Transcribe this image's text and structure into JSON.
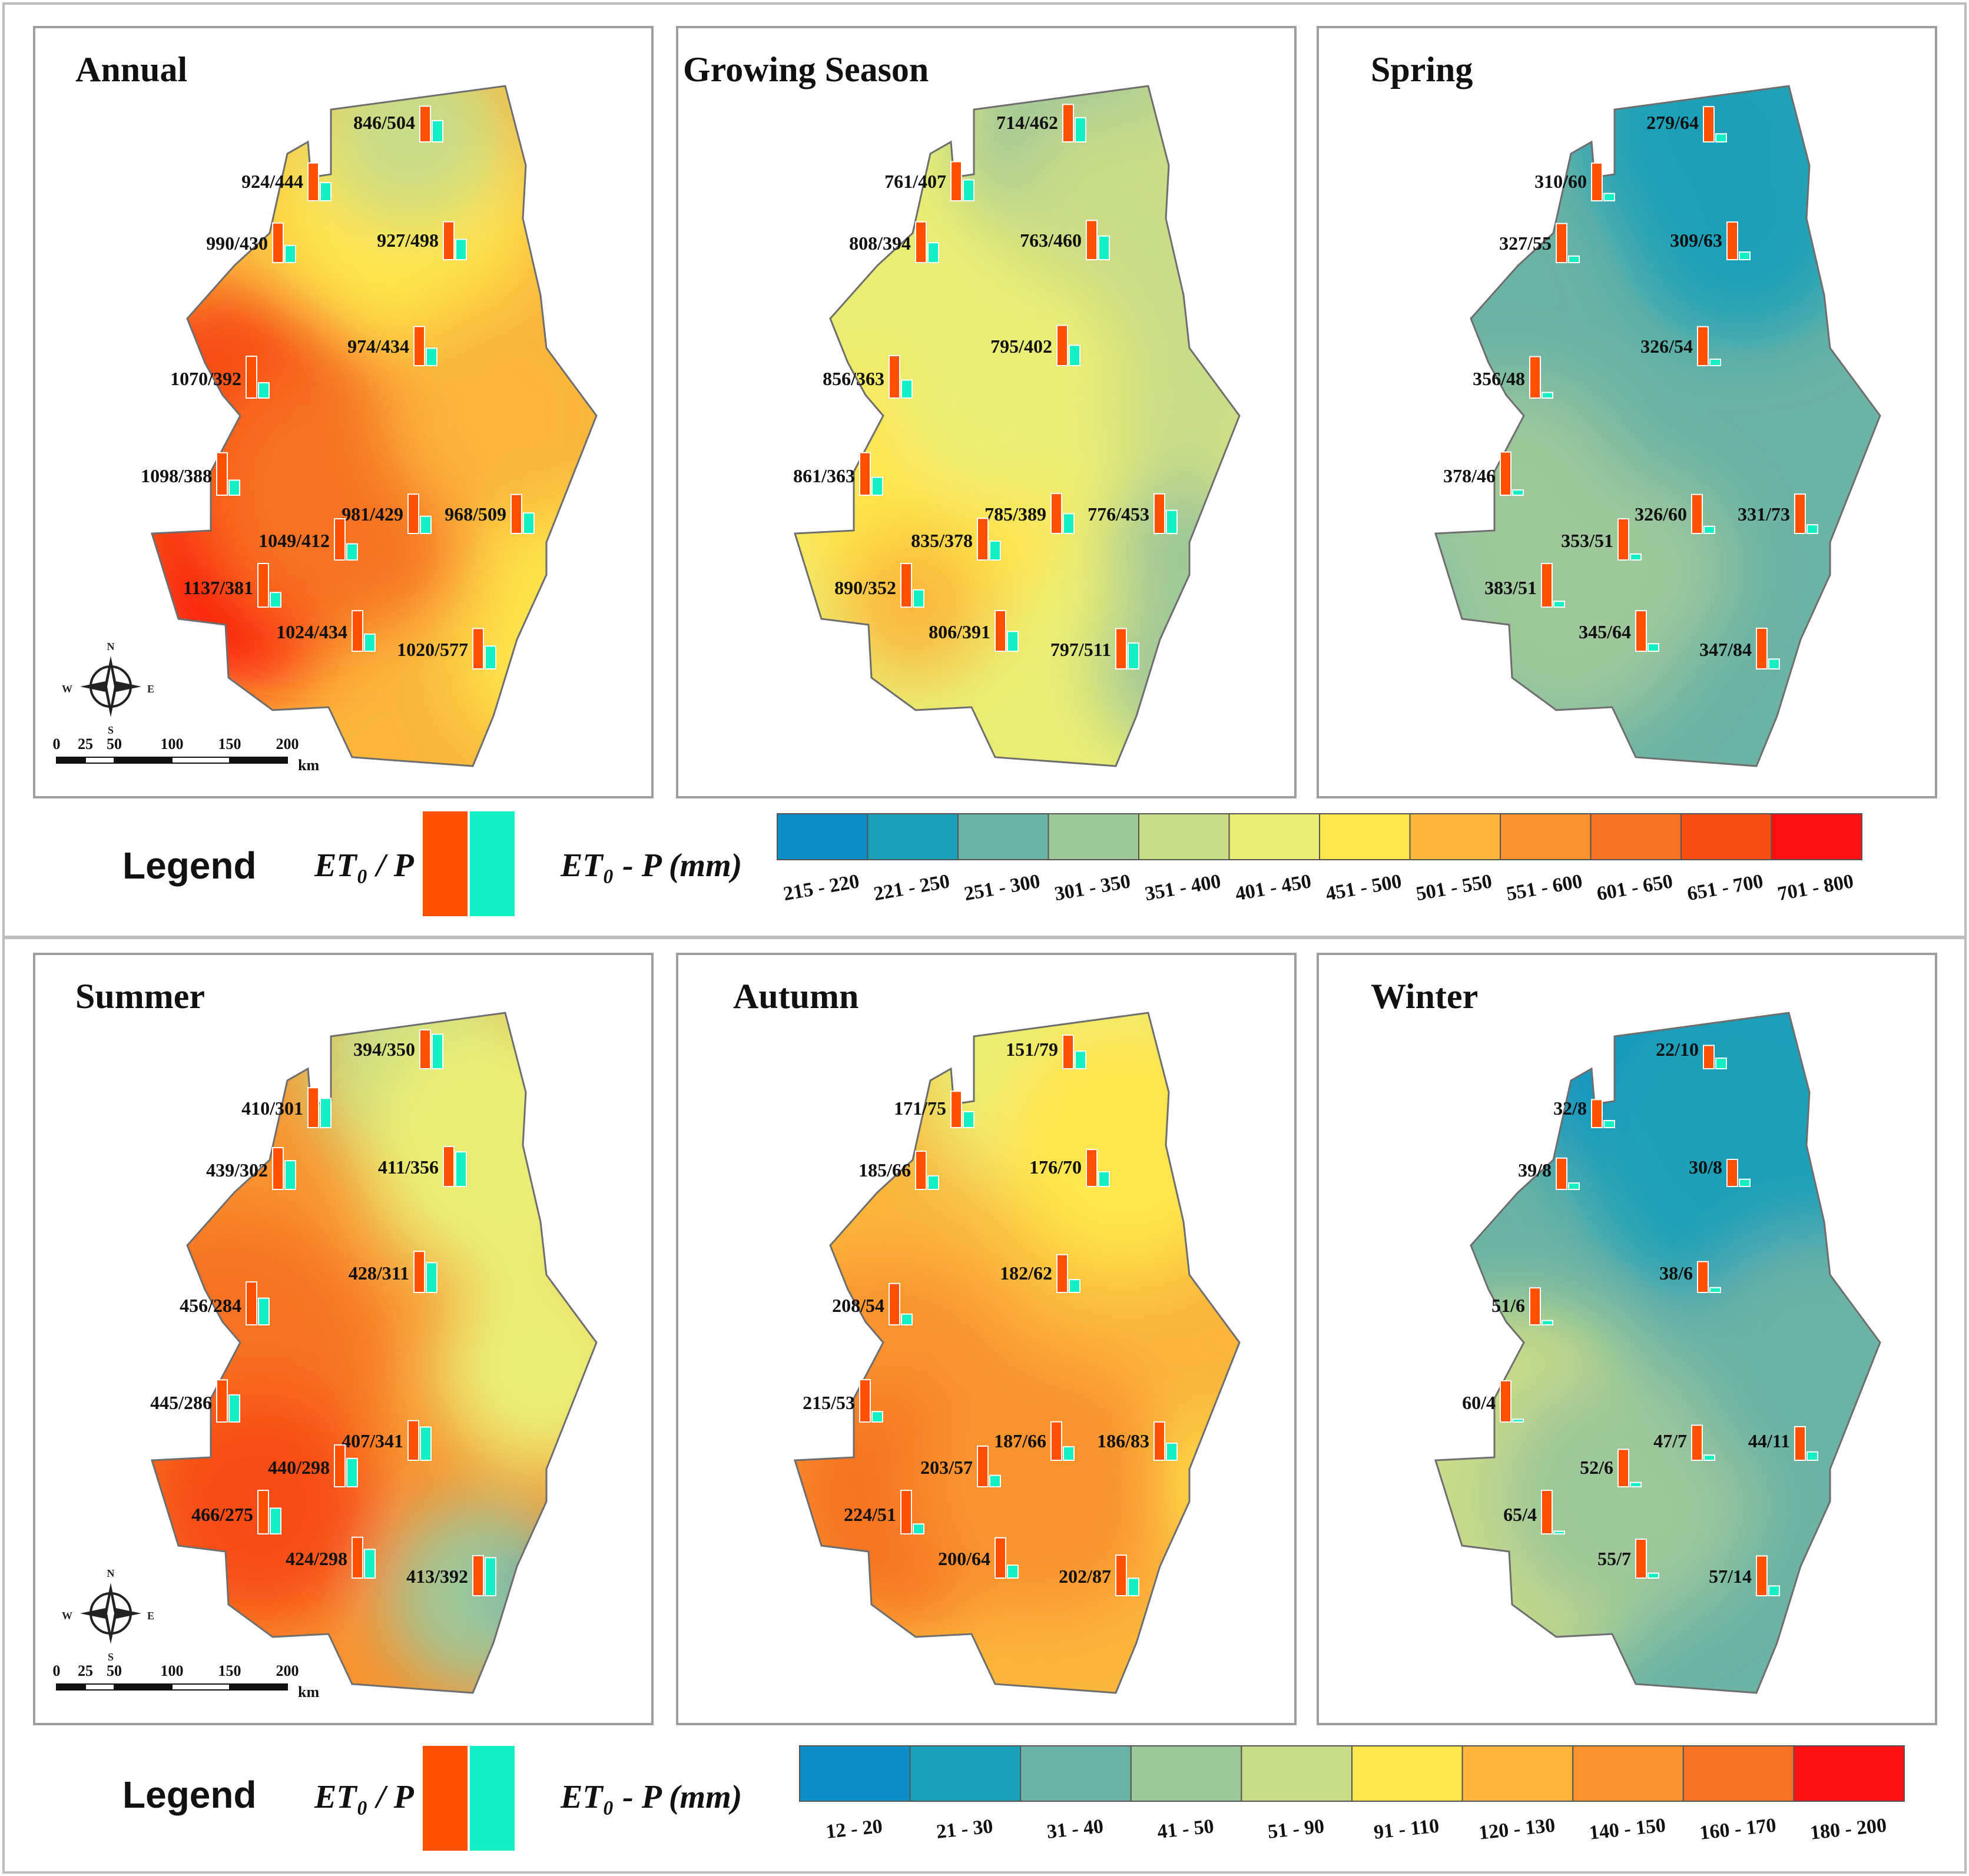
{
  "legend_word": "Legend",
  "ratio_label": "ET₀ / P",
  "diff_label": "ET₀ - P (mm)",
  "colors": {
    "et0_bar": "#ff5000",
    "p_bar": "#14f0c3",
    "palette": [
      "#0c8fc6",
      "#1aa0b8",
      "#6bb3a5",
      "#9ec79a",
      "#c9dc86",
      "#eaed74",
      "#fee54e",
      "#fbb63b",
      "#f9932e",
      "#f77223",
      "#f74c14",
      "#fb1010"
    ]
  },
  "top_block": {
    "scale_classes": [
      "215 - 220",
      "221 - 250",
      "251 - 300",
      "301 - 350",
      "351 - 400",
      "401 - 450",
      "451 - 500",
      "501 - 550",
      "551 - 600",
      "601 - 650",
      "651 - 700",
      "701 - 800"
    ],
    "maps": [
      {
        "title": "Annual",
        "stations": [
          {
            "label": "846/504",
            "et0": 846,
            "p": 504
          },
          {
            "label": "924/444",
            "et0": 924,
            "p": 444
          },
          {
            "label": "990/430",
            "et0": 990,
            "p": 430
          },
          {
            "label": "927/498",
            "et0": 927,
            "p": 498
          },
          {
            "label": "974/434",
            "et0": 974,
            "p": 434
          },
          {
            "label": "1070/392",
            "et0": 1070,
            "p": 392
          },
          {
            "label": "1098/388",
            "et0": 1098,
            "p": 388
          },
          {
            "label": "981/429",
            "et0": 981,
            "p": 429
          },
          {
            "label": "968/509",
            "et0": 968,
            "p": 509
          },
          {
            "label": "1049/412",
            "et0": 1049,
            "p": 412
          },
          {
            "label": "1137/381",
            "et0": 1137,
            "p": 381
          },
          {
            "label": "1024/434",
            "et0": 1024,
            "p": 434
          },
          {
            "label": "1020/577",
            "et0": 1020,
            "p": 577
          }
        ]
      },
      {
        "title": "Growing Season",
        "stations": [
          {
            "label": "714/462",
            "et0": 714,
            "p": 462
          },
          {
            "label": "761/407",
            "et0": 761,
            "p": 407
          },
          {
            "label": "808/394",
            "et0": 808,
            "p": 394
          },
          {
            "label": "763/460",
            "et0": 763,
            "p": 460
          },
          {
            "label": "795/402",
            "et0": 795,
            "p": 402
          },
          {
            "label": "856/363",
            "et0": 856,
            "p": 363
          },
          {
            "label": "861/363",
            "et0": 861,
            "p": 363
          },
          {
            "label": "785/389",
            "et0": 785,
            "p": 389
          },
          {
            "label": "776/453",
            "et0": 776,
            "p": 453
          },
          {
            "label": "835/378",
            "et0": 835,
            "p": 378
          },
          {
            "label": "890/352",
            "et0": 890,
            "p": 352
          },
          {
            "label": "806/391",
            "et0": 806,
            "p": 391
          },
          {
            "label": "797/511",
            "et0": 797,
            "p": 511
          }
        ]
      },
      {
        "title": "Spring",
        "stations": [
          {
            "label": "279/64",
            "et0": 279,
            "p": 64
          },
          {
            "label": "310/60",
            "et0": 310,
            "p": 60
          },
          {
            "label": "327/55",
            "et0": 327,
            "p": 55
          },
          {
            "label": "309/63",
            "et0": 309,
            "p": 63
          },
          {
            "label": "326/54",
            "et0": 326,
            "p": 54
          },
          {
            "label": "356/48",
            "et0": 356,
            "p": 48
          },
          {
            "label": "378/46",
            "et0": 378,
            "p": 46
          },
          {
            "label": "326/60",
            "et0": 326,
            "p": 60
          },
          {
            "label": "331/73",
            "et0": 331,
            "p": 73
          },
          {
            "label": "353/51",
            "et0": 353,
            "p": 51
          },
          {
            "label": "383/51",
            "et0": 383,
            "p": 51
          },
          {
            "label": "345/64",
            "et0": 345,
            "p": 64
          },
          {
            "label": "347/84",
            "et0": 347,
            "p": 84
          }
        ]
      }
    ]
  },
  "bottom_block": {
    "scale_classes": [
      "12 - 20",
      "21 - 30",
      "31 - 40",
      "41 - 50",
      "51 - 90",
      "91 - 110",
      "120 - 130",
      "140 - 150",
      "160 - 170",
      "180 - 200"
    ],
    "maps": [
      {
        "title": "Summer",
        "stations": [
          {
            "label": "394/350",
            "et0": 394,
            "p": 350
          },
          {
            "label": "410/301",
            "et0": 410,
            "p": 301
          },
          {
            "label": "439/302",
            "et0": 439,
            "p": 302
          },
          {
            "label": "411/356",
            "et0": 411,
            "p": 356
          },
          {
            "label": "428/311",
            "et0": 428,
            "p": 311
          },
          {
            "label": "456/284",
            "et0": 456,
            "p": 284
          },
          {
            "label": "445/286",
            "et0": 445,
            "p": 286
          },
          {
            "label": "407/341",
            "et0": 407,
            "p": 341
          },
          {
            "label": "440/298",
            "et0": 440,
            "p": 298
          },
          {
            "label": "466/275",
            "et0": 466,
            "p": 275
          },
          {
            "label": "424/298",
            "et0": 424,
            "p": 298
          },
          {
            "label": "413/392",
            "et0": 413,
            "p": 392
          }
        ]
      },
      {
        "title": "Autumn",
        "stations": [
          {
            "label": "151/79",
            "et0": 151,
            "p": 79
          },
          {
            "label": "171/75",
            "et0": 171,
            "p": 75
          },
          {
            "label": "185/66",
            "et0": 185,
            "p": 66
          },
          {
            "label": "176/70",
            "et0": 176,
            "p": 70
          },
          {
            "label": "182/62",
            "et0": 182,
            "p": 62
          },
          {
            "label": "208/54",
            "et0": 208,
            "p": 54
          },
          {
            "label": "215/53",
            "et0": 215,
            "p": 53
          },
          {
            "label": "187/66",
            "et0": 187,
            "p": 66
          },
          {
            "label": "186/83",
            "et0": 186,
            "p": 83
          },
          {
            "label": "203/57",
            "et0": 203,
            "p": 57
          },
          {
            "label": "224/51",
            "et0": 224,
            "p": 51
          },
          {
            "label": "200/64",
            "et0": 200,
            "p": 64
          },
          {
            "label": "202/87",
            "et0": 202,
            "p": 87
          }
        ]
      },
      {
        "title": "Winter",
        "stations": [
          {
            "label": "22/10",
            "et0": 22,
            "p": 10
          },
          {
            "label": "32/8",
            "et0": 32,
            "p": 8
          },
          {
            "label": "39/8",
            "et0": 39,
            "p": 8
          },
          {
            "label": "30/8",
            "et0": 30,
            "p": 8
          },
          {
            "label": "38/6",
            "et0": 38,
            "p": 6
          },
          {
            "label": "51/6",
            "et0": 51,
            "p": 6
          },
          {
            "label": "60/4",
            "et0": 60,
            "p": 4
          },
          {
            "label": "47/7",
            "et0": 47,
            "p": 7
          },
          {
            "label": "44/11",
            "et0": 44,
            "p": 11
          },
          {
            "label": "52/6",
            "et0": 52,
            "p": 6
          },
          {
            "label": "65/4",
            "et0": 65,
            "p": 4
          },
          {
            "label": "55/7",
            "et0": 55,
            "p": 7
          },
          {
            "label": "57/14",
            "et0": 57,
            "p": 14
          }
        ]
      }
    ]
  },
  "map_furniture": {
    "compass": {
      "n": "N",
      "s": "S",
      "e": "E",
      "w": "W"
    },
    "scale_ticks": [
      "0",
      "25",
      "50",
      "100",
      "150",
      "200"
    ],
    "scale_unit": "km"
  }
}
